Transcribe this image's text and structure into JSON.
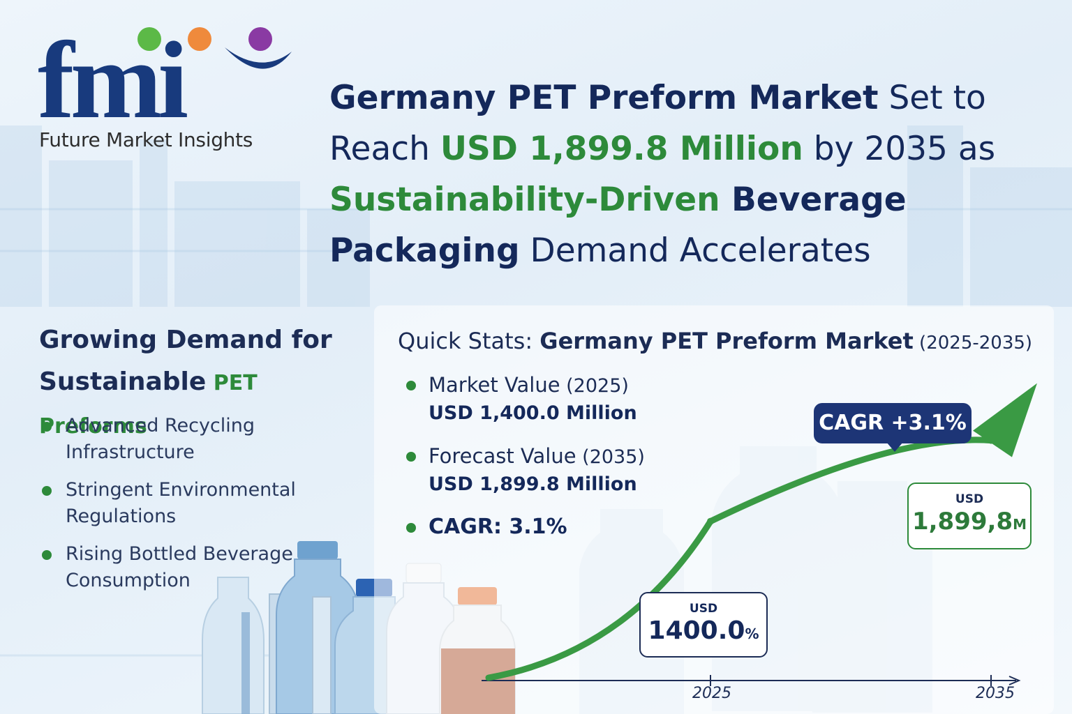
{
  "brand": {
    "logo_text": "fmi",
    "tagline": "Future Market Insights",
    "dot_colors": [
      "#5cb947",
      "#ef8a3c",
      "#8a3aa3"
    ],
    "logo_color": "#183a7d"
  },
  "headline": {
    "part1_bold": "Germany PET Preform Market",
    "part2": " Set to Reach ",
    "part3_green": "USD 1,899.8 Million",
    "part4": " by 2035 as ",
    "part5_green": "Sustainability-Driven",
    "part6_bold": " Beverage Packaging",
    "part7": " Demand Accelerates"
  },
  "left": {
    "heading_line1": "Growing Demand for",
    "heading_line2": "Sustainable",
    "heading_accent": " PET Preforms",
    "drivers": [
      "Advanced Recycling Infrastructure",
      "Stringent Environmental Regulations",
      "Rising Bottled Beverage Consumption"
    ]
  },
  "stats": {
    "title_prefix": "Quick Stats: ",
    "title_bold": "Germany PET Preform Market",
    "title_years": " (2025-2035)",
    "items": [
      {
        "label": "Market Value",
        "year": " (2025)",
        "value": "USD 1,400.0 Million"
      },
      {
        "label": "Forecast Value",
        "year": " (2035)",
        "value": "USD 1,899.8 Million"
      }
    ],
    "cagr_text": "CAGR: 3.1%"
  },
  "chart_data": {
    "type": "line",
    "x": [
      "2025",
      "2035"
    ],
    "series": [
      {
        "values": [
          1400.0,
          1899.8
        ]
      }
    ],
    "badge": "CAGR +3.1%",
    "labels": {
      "start_currency": "USD",
      "start_value": "1400.0",
      "start_unit": "%",
      "end_currency": "USD",
      "end_value": "1,899,8",
      "end_unit": "M"
    },
    "colors": {
      "line": "#3a9a44",
      "axis": "#1c2c55"
    }
  }
}
